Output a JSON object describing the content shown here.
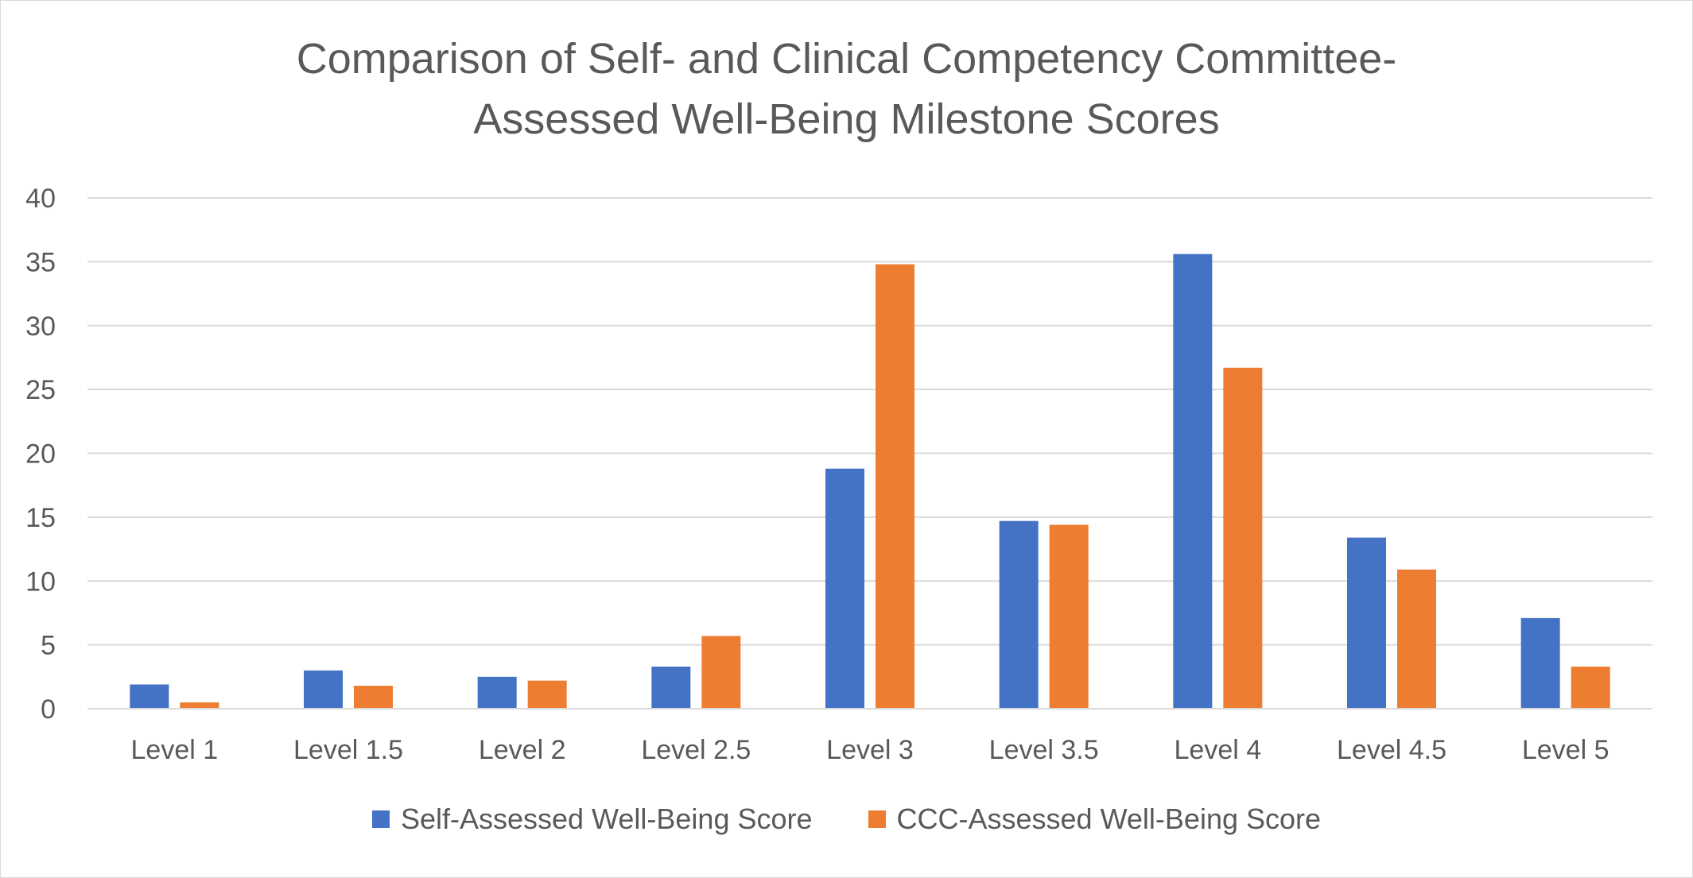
{
  "chart_data": {
    "type": "bar",
    "title_lines": [
      "Comparison of Self- and Clinical Competency Committee-",
      "Assessed Well-Being Milestone Scores"
    ],
    "categories": [
      "Level 1",
      "Level 1.5",
      "Level 2",
      "Level 2.5",
      "Level 3",
      "Level 3.5",
      "Level 4",
      "Level 4.5",
      "Level 5"
    ],
    "series": [
      {
        "name": "Self-Assessed Well-Being Score",
        "color": "#4472C4",
        "values": [
          1.9,
          3.0,
          2.5,
          3.3,
          18.8,
          14.7,
          35.6,
          13.4,
          7.1
        ]
      },
      {
        "name": "CCC-Assessed Well-Being Score",
        "color": "#ED7D31",
        "values": [
          0.5,
          1.8,
          2.2,
          5.7,
          34.8,
          14.4,
          26.7,
          10.9,
          3.3
        ]
      }
    ],
    "xlabel": "",
    "ylabel": "",
    "ylim": [
      0,
      40
    ],
    "yticks": [
      "0",
      "5",
      "10",
      "15",
      "20",
      "25",
      "30",
      "35",
      "40"
    ],
    "grid": true,
    "legend_position": "bottom"
  }
}
